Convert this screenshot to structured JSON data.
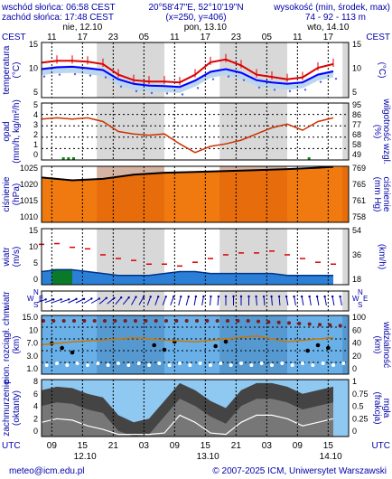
{
  "header": {
    "sunrise": "wschód słońca: 06:58 CEST",
    "sunset": "zachód słońca: 17:48 CEST",
    "coords": "20°58'47\"E, 52°10'19\"N",
    "grid_point": "(x=250, y=406)",
    "elevation_title": "wysokość (min, środek, max)",
    "elevation_values": "74 - 92 - 113 m"
  },
  "timeline": {
    "zone_top": "CEST",
    "zone_bottom": "UTC",
    "days_top": [
      "nie, 12.10",
      "pon, 13.10",
      "wto, 14.10"
    ],
    "hours_top": [
      "11",
      "17",
      "23",
      "05",
      "11",
      "17",
      "23",
      "05",
      "11",
      "17"
    ],
    "hours_bottom": [
      "09",
      "15",
      "21",
      "03",
      "09",
      "15",
      "21",
      "03",
      "09",
      "15"
    ],
    "dates_bottom": [
      "12.10",
      "13.10",
      "14.10"
    ]
  },
  "footer": {
    "email": "meteo@icm.edu.pl",
    "copyright": "© 2007-2025 ICM, Uniwersytet Warszawski"
  },
  "colors": {
    "temp_max": "#dd0000",
    "temp_mean": "#0000ff",
    "temp_band": "#bcd6f0",
    "humidity": "#cc3300",
    "pressure_fill": "#f07a10",
    "wind_gust": "#dd0000",
    "wind_speed": "#0055cc",
    "cloud_dark": "#444444"
  },
  "chart_data": [
    {
      "type": "line",
      "left_label": "temperatura",
      "left_unit": "(°C)",
      "right_unit": "(°C)",
      "ylim": [
        3,
        15
      ],
      "ticks": [
        "15",
        "10",
        "5"
      ],
      "hours": [
        0,
        3,
        6,
        9,
        12,
        15,
        18,
        21,
        24,
        27,
        30,
        33,
        36,
        39,
        42,
        45,
        48,
        51,
        54,
        57
      ],
      "series": [
        {
          "values": [
            10.6,
            11.0,
            11.0,
            10.8,
            10.3,
            8.0,
            6.8,
            6.5,
            6.5,
            6.3,
            8.0,
            10.7,
            11.3,
            10.0,
            8.0,
            7.5,
            7.0,
            7.4,
            9.5,
            10.3
          ]
        },
        {
          "values": [
            9.2,
            9.6,
            9.7,
            9.4,
            9.0,
            7.0,
            6.0,
            5.6,
            5.5,
            5.3,
            6.7,
            8.6,
            9.2,
            8.4,
            6.8,
            6.3,
            6.0,
            6.3,
            8.0,
            8.7
          ]
        }
      ]
    },
    {
      "type": "bar",
      "left_label": "opad",
      "left_unit": "(mm/h, kg/m²/h)",
      "right_label": "wilgotność wzgl.",
      "right_unit": "(%)",
      "ylim": [
        0,
        5
      ],
      "ticks": [
        "5",
        "4",
        "3",
        "2",
        "1",
        "0"
      ],
      "right_ticks": [
        "95",
        "86",
        "77",
        "68",
        "58",
        "49"
      ],
      "humidity_hours": [
        0,
        3,
        6,
        9,
        12,
        15,
        18,
        21,
        24,
        27,
        30,
        33,
        36,
        39,
        42,
        45,
        48,
        51,
        54,
        57
      ],
      "humidity": [
        82,
        83,
        82,
        83,
        80,
        72,
        70,
        69,
        70,
        62,
        55,
        60,
        62,
        65,
        70,
        75,
        78,
        73,
        80,
        83
      ]
    },
    {
      "type": "area",
      "left_label": "ciśnienie",
      "left_unit": "(hPa)",
      "right_label": "ciśnienie",
      "right_unit": "(mm Hg)",
      "ylim": [
        1006,
        1026
      ],
      "ticks": [
        "1025",
        "1020",
        "1015",
        "1010"
      ],
      "right_ticks": [
        "769",
        "765",
        "761",
        "758"
      ],
      "hours": [
        0,
        6,
        12,
        18,
        24,
        30,
        36,
        42,
        48,
        54,
        57
      ],
      "values": [
        1022.0,
        1021.0,
        1021.5,
        1023.0,
        1023.7,
        1024.0,
        1024.3,
        1024.6,
        1025.0,
        1025.5,
        1025.8
      ]
    },
    {
      "type": "line",
      "left_label": "wiatr",
      "left_unit": "(m/s)",
      "right_label": "(km/h)",
      "ylim": [
        0,
        15
      ],
      "ticks": [
        "15",
        "10",
        "5",
        "0"
      ],
      "right_ticks": [
        "54",
        "36",
        "18"
      ],
      "hours": [
        0,
        3,
        6,
        9,
        12,
        15,
        18,
        21,
        24,
        27,
        30,
        33,
        36,
        39,
        42,
        45,
        48,
        51,
        54,
        57
      ],
      "series": [
        {
          "values": [
            10.8,
            11.0,
            10.0,
            9.6,
            8.0,
            7.0,
            6.5,
            5.5,
            5.5,
            5.0,
            6.0,
            7.0,
            8.0,
            8.5,
            8.5,
            9.0,
            8.0,
            7.0,
            6.0,
            5.5
          ]
        },
        {
          "values": [
            3.5,
            4.0,
            4.0,
            3.5,
            3.0,
            2.5,
            2.5,
            2.5,
            3.0,
            3.5,
            3.5,
            3.0,
            3.0,
            3.0,
            3.0,
            3.0,
            2.5,
            2.5,
            2.5,
            2.5
          ]
        }
      ]
    },
    {
      "type": "scatter",
      "left_label": "wiatr",
      "direction_labels": [
        "W",
        "S",
        "N",
        "E"
      ],
      "hours": [
        0,
        3,
        6,
        9,
        12,
        15,
        18,
        21,
        24,
        27,
        30,
        33,
        36,
        39,
        42,
        45,
        48,
        51,
        54,
        57
      ],
      "direction_deg": [
        250,
        250,
        245,
        240,
        230,
        220,
        210,
        200,
        200,
        195,
        190,
        185,
        180,
        180,
        175,
        175,
        170,
        170,
        170,
        170
      ]
    },
    {
      "type": "scatter",
      "left_label": "pion. rozciągł. chm.",
      "left_unit": "(km)",
      "right_label": "widzialność",
      "right_unit": "(km)",
      "ylim": [
        0,
        15
      ],
      "ticks": [
        "15.0",
        "10",
        "7.0",
        "3.0",
        "1.0"
      ],
      "right_ticks": [
        "100",
        "60",
        "40",
        "20",
        "0"
      ],
      "visibility_hours": [
        0,
        6,
        12,
        18,
        24,
        30,
        36,
        42,
        48,
        54,
        57
      ],
      "visibility": [
        50,
        55,
        58,
        62,
        58,
        55,
        60,
        65,
        55,
        60,
        62
      ]
    },
    {
      "type": "area",
      "left_label": "zachmurzenie",
      "left_unit": "(oktanty)",
      "right_label": "mgła",
      "right_unit": "(frakcja)",
      "ylim": [
        0,
        8
      ],
      "ticks": [
        "8",
        "6",
        "4",
        "2",
        "0"
      ],
      "right_ticks": [
        "1",
        "0.75",
        "0.5",
        "0.25",
        "0"
      ],
      "hours": [
        0,
        3,
        6,
        9,
        12,
        15,
        18,
        21,
        24,
        27,
        30,
        33,
        36,
        39,
        42,
        45,
        48,
        51,
        54,
        57
      ],
      "values": [
        6.5,
        7.0,
        6.8,
        6.0,
        5.5,
        3.0,
        2.0,
        2.5,
        5.0,
        7.5,
        6.5,
        5.0,
        4.0,
        6.5,
        7.5,
        7.5,
        7.0,
        6.0,
        6.5,
        7.0
      ]
    }
  ]
}
